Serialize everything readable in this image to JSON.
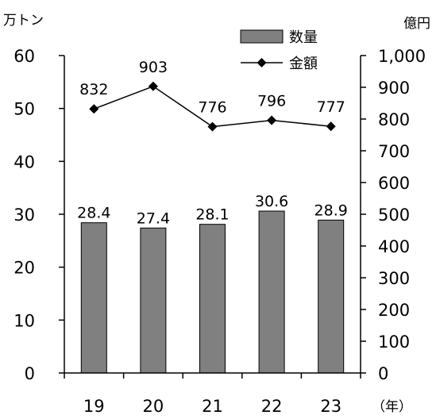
{
  "chart_data": {
    "type": "bar",
    "title": "",
    "xlabel": "",
    "ylabel": "",
    "categories": [
      "19",
      "20",
      "21",
      "22",
      "23"
    ],
    "x_unit": "（年）",
    "y_left": {
      "unit": "万トン",
      "min": 0,
      "max": 60,
      "ticks": [
        "0",
        "10",
        "20",
        "30",
        "40",
        "50",
        "60"
      ]
    },
    "y_right": {
      "unit": "億円",
      "min": 0,
      "max": 1000,
      "ticks": [
        "0",
        "100",
        "200",
        "300",
        "400",
        "500",
        "600",
        "700",
        "800",
        "900",
        "1,000"
      ]
    },
    "series": [
      {
        "name": "数量",
        "type": "bar",
        "axis": "left",
        "values": [
          28.4,
          27.4,
          28.1,
          30.6,
          28.9
        ],
        "labels": [
          "28.4",
          "27.4",
          "28.1",
          "30.6",
          "28.9"
        ],
        "color": "#808080"
      },
      {
        "name": "金額",
        "type": "line",
        "axis": "right",
        "marker": "diamond",
        "values": [
          832,
          903,
          776,
          796,
          777
        ],
        "labels": [
          "832",
          "903",
          "776",
          "796",
          "777"
        ],
        "color": "#000000"
      }
    ],
    "legend": "top-right",
    "grid": false
  }
}
